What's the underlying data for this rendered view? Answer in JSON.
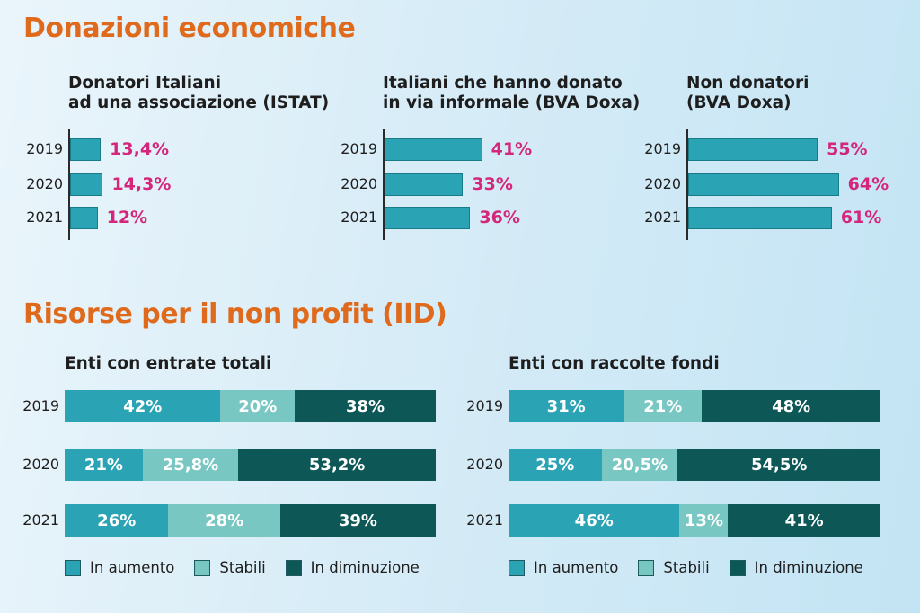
{
  "section1_title": "Donazioni economiche",
  "section2_title": "Risorse per il non profit (IID)",
  "colors": {
    "bar": "#2aa3b4",
    "pct": "#d4267a",
    "title": "#e06a1c",
    "in_aumento": "#2aa3b4",
    "stabili": "#79c7c3",
    "in_diminuzione": "#0d5856"
  },
  "chart_data": [
    {
      "type": "bar",
      "title": "Donatori Italiani\nad una associazione  (ISTAT)",
      "categories": [
        "2019",
        "2020",
        "2021"
      ],
      "values": [
        13.4,
        14.3,
        12
      ],
      "labels": [
        "13,4%",
        "14,3%",
        "12%"
      ]
    },
    {
      "type": "bar",
      "title": "Italiani che hanno donato\nin via informale (BVA Doxa)",
      "categories": [
        "2019",
        "2020",
        "2021"
      ],
      "values": [
        41,
        33,
        36
      ],
      "labels": [
        "41%",
        "33%",
        "36%"
      ]
    },
    {
      "type": "bar",
      "title": "Non donatori\n(BVA Doxa)",
      "categories": [
        "2019",
        "2020",
        "2021"
      ],
      "values": [
        55,
        64,
        61
      ],
      "labels": [
        "55%",
        "64%",
        "61%"
      ]
    },
    {
      "type": "bar",
      "stacked": true,
      "title": "Enti con entrate totali",
      "categories": [
        "2019",
        "2020",
        "2021"
      ],
      "series": [
        {
          "name": "In aumento",
          "values": [
            42,
            21,
            26
          ],
          "labels": [
            "42%",
            "21%",
            "26%"
          ]
        },
        {
          "name": "Stabili",
          "values": [
            20,
            25.8,
            28
          ],
          "labels": [
            "20%",
            "25,8%",
            "28%"
          ]
        },
        {
          "name": "In diminuzione",
          "values": [
            38,
            53.2,
            39
          ],
          "labels": [
            "38%",
            "53,2%",
            "39%"
          ]
        }
      ],
      "legend": "bottom"
    },
    {
      "type": "bar",
      "stacked": true,
      "title": "Enti con  raccolte fondi",
      "categories": [
        "2019",
        "2020",
        "2021"
      ],
      "series": [
        {
          "name": "In aumento",
          "values": [
            31,
            25,
            46
          ],
          "labels": [
            "31%",
            "25%",
            "46%"
          ]
        },
        {
          "name": "Stabili",
          "values": [
            21,
            20.5,
            13
          ],
          "labels": [
            "21%",
            "20,5%",
            "13%"
          ]
        },
        {
          "name": "In diminuzione",
          "values": [
            48,
            54.5,
            41
          ],
          "labels": [
            "48%",
            "54,5%",
            "41%"
          ]
        }
      ],
      "legend": "bottom"
    }
  ]
}
